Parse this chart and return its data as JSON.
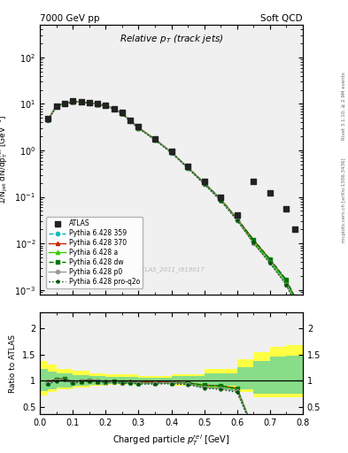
{
  "title_left": "7000 GeV pp",
  "title_right": "Soft QCD",
  "plot_title": "Relative $p_T$ (track jets)",
  "xlabel": "Charged particle $p_T^{rel}$ [GeV]",
  "ylabel": "1/N$_{jet}$ dN/dp$_T^{rel}$ [GeV$^{-1}$]",
  "ylabel_ratio": "Ratio to ATLAS",
  "right_label_top": "Rivet 3.1.10, ≥ 2.9M events",
  "right_label_bottom": "mcplots.cern.ch [arXiv:1306.3436]",
  "watermark": "ATLAS_2011_I919017",
  "xlim": [
    0.0,
    0.8
  ],
  "ylim_main": [
    0.0008,
    500
  ],
  "ylim_ratio": [
    0.35,
    2.3
  ],
  "atlas_x": [
    0.025,
    0.05,
    0.075,
    0.1,
    0.125,
    0.15,
    0.175,
    0.2,
    0.225,
    0.25,
    0.275,
    0.3,
    0.35,
    0.4,
    0.45,
    0.5,
    0.55,
    0.6,
    0.65,
    0.7,
    0.75,
    0.775
  ],
  "atlas_y": [
    4.8,
    9.0,
    10.0,
    11.5,
    11.2,
    10.5,
    10.0,
    9.5,
    8.0,
    6.5,
    4.5,
    3.2,
    1.8,
    0.95,
    0.45,
    0.22,
    0.1,
    0.04,
    0.22,
    0.12,
    0.055,
    0.02
  ],
  "py359_x": [
    0.025,
    0.05,
    0.075,
    0.1,
    0.125,
    0.15,
    0.175,
    0.2,
    0.225,
    0.25,
    0.275,
    0.3,
    0.35,
    0.4,
    0.45,
    0.5,
    0.55,
    0.6,
    0.65,
    0.7,
    0.75,
    0.775
  ],
  "py359_y": [
    4.5,
    9.0,
    10.2,
    11.0,
    11.0,
    10.5,
    9.8,
    9.2,
    7.8,
    6.2,
    4.3,
    3.0,
    1.7,
    0.9,
    0.42,
    0.19,
    0.085,
    0.032,
    0.011,
    0.004,
    0.0015,
    0.0007
  ],
  "py370_x": [
    0.025,
    0.05,
    0.075,
    0.1,
    0.125,
    0.15,
    0.175,
    0.2,
    0.225,
    0.25,
    0.275,
    0.3,
    0.35,
    0.4,
    0.45,
    0.5,
    0.55,
    0.6,
    0.65,
    0.7,
    0.75,
    0.775
  ],
  "py370_y": [
    4.7,
    9.2,
    10.4,
    11.2,
    11.1,
    10.6,
    9.9,
    9.3,
    7.9,
    6.3,
    4.4,
    3.1,
    1.75,
    0.92,
    0.43,
    0.2,
    0.09,
    0.034,
    0.012,
    0.0045,
    0.0016,
    0.0007
  ],
  "pya_x": [
    0.025,
    0.05,
    0.075,
    0.1,
    0.125,
    0.15,
    0.175,
    0.2,
    0.225,
    0.25,
    0.275,
    0.3,
    0.35,
    0.4,
    0.45,
    0.5,
    0.55,
    0.6,
    0.65,
    0.7,
    0.75,
    0.775
  ],
  "pya_y": [
    4.6,
    9.1,
    10.3,
    11.1,
    11.0,
    10.5,
    9.85,
    9.25,
    7.85,
    6.25,
    4.35,
    3.05,
    1.72,
    0.91,
    0.425,
    0.195,
    0.088,
    0.033,
    0.011,
    0.0043,
    0.0015,
    0.00065
  ],
  "pydw_x": [
    0.025,
    0.05,
    0.075,
    0.1,
    0.125,
    0.15,
    0.175,
    0.2,
    0.225,
    0.25,
    0.275,
    0.3,
    0.35,
    0.4,
    0.45,
    0.5,
    0.55,
    0.6,
    0.65,
    0.7,
    0.75,
    0.775
  ],
  "pydw_y": [
    4.6,
    9.1,
    10.3,
    11.1,
    11.0,
    10.5,
    9.85,
    9.25,
    7.85,
    6.25,
    4.35,
    3.05,
    1.72,
    0.91,
    0.43,
    0.2,
    0.09,
    0.034,
    0.012,
    0.0046,
    0.00165,
    0.00072
  ],
  "pyp0_x": [
    0.025,
    0.05,
    0.075,
    0.1,
    0.125,
    0.15,
    0.175,
    0.2,
    0.225,
    0.25,
    0.275,
    0.3,
    0.35,
    0.4,
    0.45,
    0.5,
    0.55,
    0.6,
    0.65,
    0.7,
    0.75,
    0.775
  ],
  "pyp0_y": [
    4.55,
    9.0,
    10.25,
    11.05,
    10.95,
    10.45,
    9.8,
    9.2,
    7.8,
    6.2,
    4.32,
    3.02,
    1.7,
    0.905,
    0.42,
    0.19,
    0.085,
    0.032,
    0.01,
    0.0038,
    0.0013,
    0.00055
  ],
  "pyproq2o_x": [
    0.025,
    0.05,
    0.075,
    0.1,
    0.125,
    0.15,
    0.175,
    0.2,
    0.225,
    0.25,
    0.275,
    0.3,
    0.35,
    0.4,
    0.45,
    0.5,
    0.55,
    0.6,
    0.65,
    0.7,
    0.75,
    0.775
  ],
  "pyproq2o_y": [
    4.5,
    8.9,
    10.1,
    10.9,
    10.85,
    10.4,
    9.75,
    9.15,
    7.75,
    6.15,
    4.28,
    2.98,
    1.68,
    0.89,
    0.415,
    0.188,
    0.083,
    0.031,
    0.0105,
    0.0038,
    0.0013,
    0.00055
  ],
  "ratio_band_yellow_edges": [
    0.0,
    0.025,
    0.05,
    0.1,
    0.15,
    0.2,
    0.3,
    0.4,
    0.5,
    0.6,
    0.65,
    0.7,
    0.75,
    0.8
  ],
  "ratio_band_yellow_lo": [
    0.72,
    0.78,
    0.83,
    0.86,
    0.9,
    0.92,
    0.93,
    0.9,
    0.85,
    0.78,
    0.68,
    0.68,
    0.68,
    0.68
  ],
  "ratio_band_yellow_hi": [
    1.38,
    1.3,
    1.22,
    1.18,
    1.14,
    1.12,
    1.09,
    1.12,
    1.22,
    1.4,
    1.55,
    1.65,
    1.68,
    1.68
  ],
  "ratio_band_green_edges": [
    0.0,
    0.025,
    0.05,
    0.1,
    0.15,
    0.2,
    0.3,
    0.4,
    0.5,
    0.6,
    0.65,
    0.7,
    0.75,
    0.8
  ],
  "ratio_band_green_lo": [
    0.8,
    0.84,
    0.87,
    0.9,
    0.92,
    0.93,
    0.95,
    0.93,
    0.9,
    0.84,
    0.75,
    0.75,
    0.75,
    0.75
  ],
  "ratio_band_green_hi": [
    1.22,
    1.17,
    1.13,
    1.11,
    1.09,
    1.07,
    1.06,
    1.08,
    1.14,
    1.25,
    1.38,
    1.45,
    1.48,
    1.48
  ],
  "color_py359": "#00bbbb",
  "color_py370": "#cc2200",
  "color_pya": "#33cc00",
  "color_pydw": "#007700",
  "color_pyp0": "#999999",
  "color_pyproq2o": "#005500",
  "color_atlas": "#222222",
  "color_yellow_band": "#ffff44",
  "color_green_band": "#88dd88",
  "bg_color": "#f0f0f0"
}
